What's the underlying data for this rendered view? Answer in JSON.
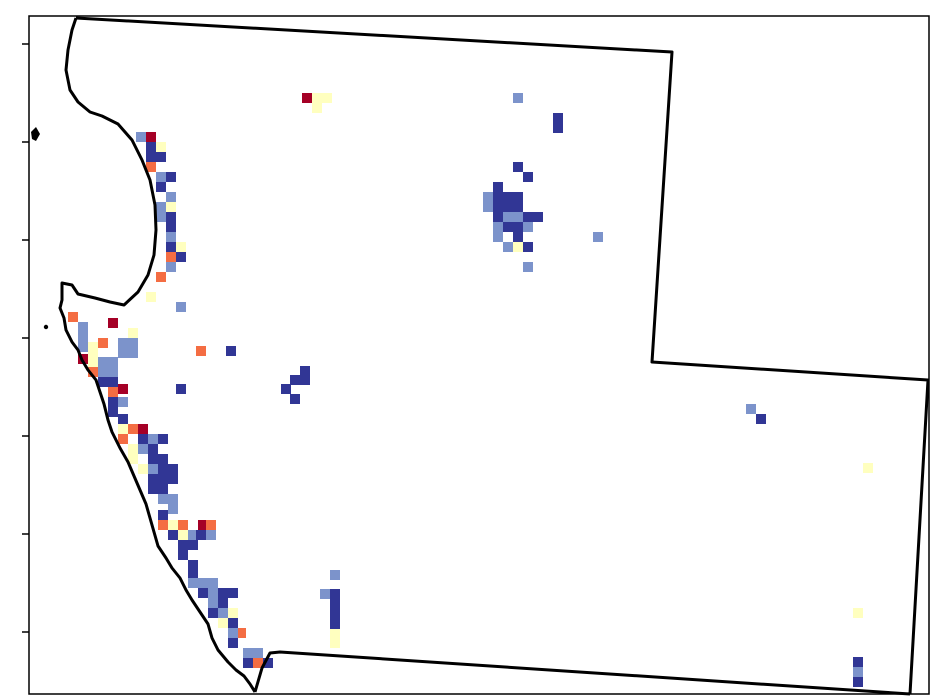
{
  "map": {
    "type": "gridded-raster",
    "palette": {
      "darkred": "#a50026",
      "orange": "#f46d43",
      "paleyellow": "#ffffbf",
      "lightblue": "#7c93cb",
      "darkblue": "#313695"
    },
    "y_ticks": 7,
    "grid_cell": 10,
    "cells": [
      [
        "darkred",
        302,
        93
      ],
      [
        "paleyellow",
        312,
        93
      ],
      [
        "paleyellow",
        322,
        93
      ],
      [
        "paleyellow",
        312,
        103
      ],
      [
        "lightblue",
        513,
        93
      ],
      [
        "darkblue",
        553,
        113
      ],
      [
        "darkblue",
        553,
        123
      ],
      [
        "lightblue",
        136,
        132
      ],
      [
        "darkred",
        146,
        132
      ],
      [
        "paleyellow",
        156,
        142
      ],
      [
        "darkblue",
        146,
        142
      ],
      [
        "darkblue",
        146,
        152
      ],
      [
        "darkblue",
        156,
        152
      ],
      [
        "orange",
        146,
        162
      ],
      [
        "lightblue",
        156,
        172
      ],
      [
        "darkblue",
        166,
        172
      ],
      [
        "darkblue",
        156,
        182
      ],
      [
        "lightblue",
        166,
        192
      ],
      [
        "lightblue",
        156,
        202
      ],
      [
        "paleyellow",
        166,
        202
      ],
      [
        "lightblue",
        156,
        212
      ],
      [
        "darkblue",
        166,
        212
      ],
      [
        "darkblue",
        166,
        222
      ],
      [
        "lightblue",
        166,
        232
      ],
      [
        "paleyellow",
        176,
        242
      ],
      [
        "darkblue",
        166,
        242
      ],
      [
        "orange",
        166,
        252
      ],
      [
        "darkblue",
        176,
        252
      ],
      [
        "lightblue",
        166,
        262
      ],
      [
        "orange",
        156,
        272
      ],
      [
        "paleyellow",
        146,
        292
      ],
      [
        "lightblue",
        176,
        302
      ],
      [
        "darkblue",
        513,
        162
      ],
      [
        "darkblue",
        523,
        172
      ],
      [
        "darkblue",
        493,
        182
      ],
      [
        "lightblue",
        483,
        192
      ],
      [
        "darkblue",
        493,
        192
      ],
      [
        "darkblue",
        503,
        192
      ],
      [
        "darkblue",
        513,
        192
      ],
      [
        "lightblue",
        483,
        202
      ],
      [
        "darkblue",
        493,
        202
      ],
      [
        "darkblue",
        503,
        202
      ],
      [
        "darkblue",
        513,
        202
      ],
      [
        "darkblue",
        493,
        212
      ],
      [
        "lightblue",
        503,
        212
      ],
      [
        "lightblue",
        513,
        212
      ],
      [
        "darkblue",
        523,
        212
      ],
      [
        "darkblue",
        533,
        212
      ],
      [
        "lightblue",
        493,
        222
      ],
      [
        "darkblue",
        503,
        222
      ],
      [
        "darkblue",
        513,
        222
      ],
      [
        "lightblue",
        523,
        222
      ],
      [
        "lightblue",
        493,
        232
      ],
      [
        "darkblue",
        513,
        232
      ],
      [
        "lightblue",
        503,
        242
      ],
      [
        "paleyellow",
        513,
        242
      ],
      [
        "darkblue",
        523,
        242
      ],
      [
        "lightblue",
        523,
        262
      ],
      [
        "lightblue",
        593,
        232
      ],
      [
        "orange",
        68,
        312
      ],
      [
        "lightblue",
        78,
        322
      ],
      [
        "darkred",
        108,
        318
      ],
      [
        "paleyellow",
        128,
        328
      ],
      [
        "lightblue",
        78,
        332
      ],
      [
        "orange",
        98,
        338
      ],
      [
        "paleyellow",
        88,
        342
      ],
      [
        "lightblue",
        78,
        342
      ],
      [
        "lightblue",
        118,
        338
      ],
      [
        "lightblue",
        128,
        338
      ],
      [
        "lightblue",
        118,
        348
      ],
      [
        "lightblue",
        128,
        348
      ],
      [
        "paleyellow",
        88,
        352
      ],
      [
        "darkred",
        78,
        354
      ],
      [
        "paleyellow",
        88,
        362
      ],
      [
        "orange",
        88,
        367
      ],
      [
        "lightblue",
        98,
        357
      ],
      [
        "lightblue",
        108,
        357
      ],
      [
        "lightblue",
        98,
        367
      ],
      [
        "lightblue",
        108,
        367
      ],
      [
        "darkblue",
        98,
        377
      ],
      [
        "darkblue",
        108,
        377
      ],
      [
        "orange",
        108,
        387
      ],
      [
        "darkred",
        118,
        384
      ],
      [
        "darkblue",
        108,
        397
      ],
      [
        "lightblue",
        118,
        397
      ],
      [
        "darkblue",
        108,
        407
      ],
      [
        "darkblue",
        118,
        414
      ],
      [
        "paleyellow",
        118,
        424
      ],
      [
        "darkred",
        138,
        424
      ],
      [
        "orange",
        128,
        424
      ],
      [
        "orange",
        118,
        434
      ],
      [
        "darkblue",
        138,
        434
      ],
      [
        "lightblue",
        148,
        434
      ],
      [
        "darkblue",
        148,
        444
      ],
      [
        "darkblue",
        158,
        434
      ],
      [
        "paleyellow",
        128,
        444
      ],
      [
        "lightblue",
        138,
        444
      ],
      [
        "paleyellow",
        128,
        454
      ],
      [
        "darkblue",
        148,
        454
      ],
      [
        "darkblue",
        158,
        454
      ],
      [
        "paleyellow",
        138,
        464
      ],
      [
        "lightblue",
        148,
        464
      ],
      [
        "darkblue",
        158,
        464
      ],
      [
        "darkblue",
        168,
        464
      ],
      [
        "darkblue",
        148,
        474
      ],
      [
        "darkblue",
        158,
        474
      ],
      [
        "darkblue",
        168,
        474
      ],
      [
        "darkblue",
        148,
        484
      ],
      [
        "darkblue",
        158,
        484
      ],
      [
        "lightblue",
        158,
        494
      ],
      [
        "lightblue",
        168,
        494
      ],
      [
        "lightblue",
        168,
        504
      ],
      [
        "darkblue",
        158,
        510
      ],
      [
        "orange",
        158,
        520
      ],
      [
        "paleyellow",
        168,
        520
      ],
      [
        "orange",
        178,
        520
      ],
      [
        "darkred",
        198,
        520
      ],
      [
        "orange",
        206,
        520
      ],
      [
        "darkblue",
        168,
        530
      ],
      [
        "paleyellow",
        178,
        530
      ],
      [
        "lightblue",
        188,
        530
      ],
      [
        "darkblue",
        196,
        530
      ],
      [
        "lightblue",
        206,
        530
      ],
      [
        "darkblue",
        178,
        540
      ],
      [
        "darkblue",
        188,
        540
      ],
      [
        "darkblue",
        178,
        550
      ],
      [
        "darkblue",
        188,
        560
      ],
      [
        "darkblue",
        188,
        570
      ],
      [
        "lightblue",
        188,
        578
      ],
      [
        "lightblue",
        198,
        578
      ],
      [
        "lightblue",
        208,
        578
      ],
      [
        "darkblue",
        198,
        588
      ],
      [
        "lightblue",
        208,
        588
      ],
      [
        "darkblue",
        218,
        588
      ],
      [
        "darkblue",
        228,
        588
      ],
      [
        "lightblue",
        208,
        598
      ],
      [
        "darkblue",
        218,
        598
      ],
      [
        "paleyellow",
        228,
        608
      ],
      [
        "darkblue",
        208,
        608
      ],
      [
        "lightblue",
        218,
        608
      ],
      [
        "paleyellow",
        218,
        618
      ],
      [
        "darkblue",
        228,
        618
      ],
      [
        "orange",
        236,
        628
      ],
      [
        "lightblue",
        228,
        628
      ],
      [
        "darkblue",
        228,
        638
      ],
      [
        "lightblue",
        243,
        648
      ],
      [
        "lightblue",
        253,
        648
      ],
      [
        "darkblue",
        243,
        658
      ],
      [
        "orange",
        253,
        658
      ],
      [
        "darkblue",
        263,
        658
      ],
      [
        "orange",
        196,
        346
      ],
      [
        "darkblue",
        226,
        346
      ],
      [
        "darkblue",
        176,
        384
      ],
      [
        "darkblue",
        300,
        366
      ],
      [
        "darkblue",
        290,
        375
      ],
      [
        "darkblue",
        300,
        375
      ],
      [
        "darkblue",
        281,
        384
      ],
      [
        "darkblue",
        290,
        394
      ],
      [
        "lightblue",
        330,
        570
      ],
      [
        "lightblue",
        320,
        589
      ],
      [
        "darkblue",
        330,
        589
      ],
      [
        "darkblue",
        330,
        599
      ],
      [
        "darkblue",
        330,
        609
      ],
      [
        "darkblue",
        330,
        619
      ],
      [
        "paleyellow",
        330,
        629
      ],
      [
        "paleyellow",
        330,
        638
      ],
      [
        "lightblue",
        746,
        404
      ],
      [
        "darkblue",
        756,
        414
      ],
      [
        "paleyellow",
        863,
        463
      ],
      [
        "paleyellow",
        853,
        608
      ],
      [
        "darkblue",
        853,
        657
      ],
      [
        "lightblue",
        853,
        667
      ],
      [
        "darkblue",
        853,
        677
      ]
    ]
  }
}
